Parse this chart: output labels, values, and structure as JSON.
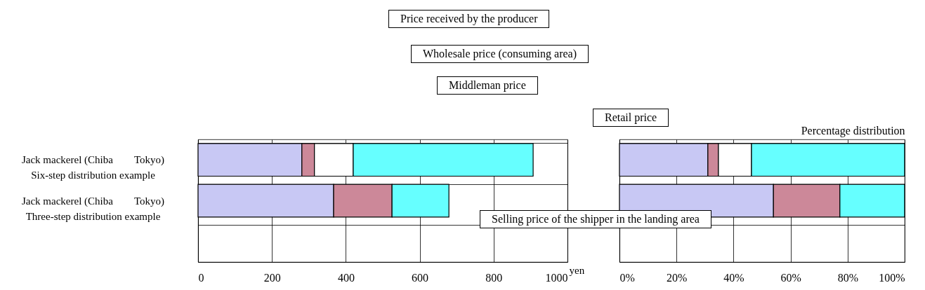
{
  "chart_data": [
    {
      "type": "bar",
      "orientation": "horizontal",
      "stacked": true,
      "xlabel": "yen",
      "categories": [
        "Jack mackerel (Chiba　　Tokyo)\nSix-step distribution example",
        "Jack mackerel (Chiba　　Tokyo)\nThree-step distribution example",
        null
      ],
      "series": [
        {
          "color": "#c8c8f4",
          "values": [
            281,
            367,
            null
          ]
        },
        {
          "color": "#cc8899",
          "values": [
            34,
            158,
            null
          ]
        },
        {
          "color": "#ffffff",
          "values": [
            105,
            null,
            null
          ]
        },
        {
          "color": "#66ffff",
          "values": [
            487,
            154,
            null
          ]
        }
      ],
      "xlim": [
        0,
        1000
      ],
      "xticks": [
        0,
        200,
        400,
        600,
        800,
        1000
      ],
      "grid": true,
      "annotations": [
        "Price received by the producer",
        "Wholesale price (consuming area)",
        "Middleman price",
        "Retail price",
        "Selling price of the shipper in the landing area"
      ]
    },
    {
      "type": "bar",
      "orientation": "horizontal",
      "stacked": true,
      "title": "Percentage distribution",
      "tick_labels": "x",
      "series": [
        {
          "color": "#c8c8f4",
          "values": [
            31,
            54,
            null
          ]
        },
        {
          "color": "#cc8899",
          "values": [
            3.7,
            23.3,
            null
          ]
        },
        {
          "color": "#ffffff",
          "values": [
            11.6,
            null,
            null
          ]
        },
        {
          "color": "#66ffff",
          "values": [
            53.7,
            22.7,
            null
          ]
        }
      ],
      "xlim": [
        0,
        100
      ],
      "xticks": [
        {
          "value": 0,
          "label": "0%"
        },
        {
          "value": 20,
          "label": "20%"
        },
        {
          "value": 40,
          "label": "40%"
        },
        {
          "value": 60,
          "label": "60%"
        },
        {
          "value": 80,
          "label": "80%"
        },
        {
          "value": 100,
          "label": "100%"
        }
      ],
      "grid": true
    }
  ]
}
